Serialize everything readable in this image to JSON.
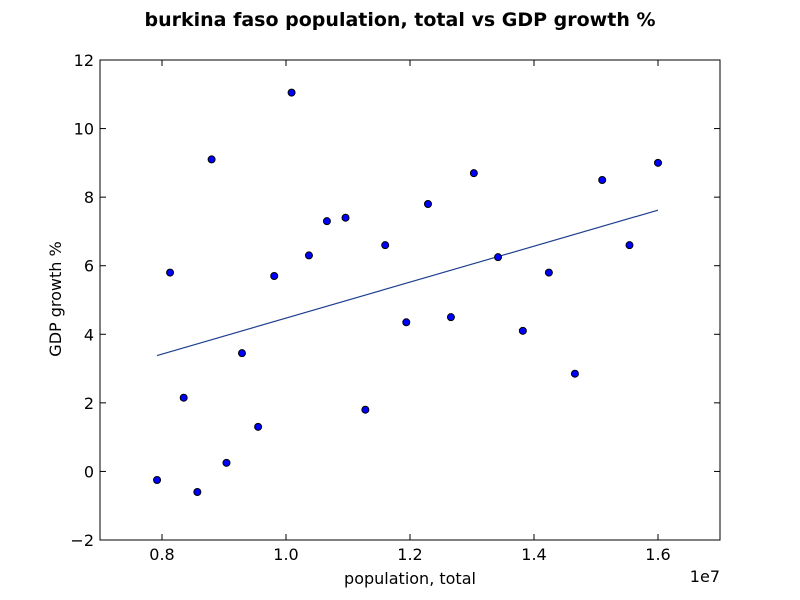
{
  "chart_data": {
    "type": "scatter",
    "title": "burkina faso population, total vs GDP growth %",
    "xlabel": "population, total",
    "ylabel": "GDP growth %",
    "x_offset_label": "1e7",
    "xlim": [
      7000000,
      17000000
    ],
    "ylim": [
      -2,
      12
    ],
    "x_ticks": [
      8000000,
      10000000,
      12000000,
      14000000,
      16000000
    ],
    "x_tick_labels": [
      "0.8",
      "1.0",
      "1.2",
      "1.4",
      "1.6"
    ],
    "y_ticks": [
      -2,
      0,
      2,
      4,
      6,
      8,
      10,
      12
    ],
    "y_tick_labels": [
      "−2",
      "0",
      "2",
      "4",
      "6",
      "8",
      "10",
      "12"
    ],
    "grid": false,
    "point_color": "#0000ff",
    "line_color": "#1f3f8f",
    "points": [
      {
        "x": 7920000,
        "y": -0.25
      },
      {
        "x": 8130000,
        "y": 5.8
      },
      {
        "x": 8350000,
        "y": 2.15
      },
      {
        "x": 8570000,
        "y": -0.6
      },
      {
        "x": 8800000,
        "y": 9.1
      },
      {
        "x": 9040000,
        "y": 0.25
      },
      {
        "x": 9290000,
        "y": 3.45
      },
      {
        "x": 9550000,
        "y": 1.3
      },
      {
        "x": 9810000,
        "y": 5.7
      },
      {
        "x": 10090000,
        "y": 11.05
      },
      {
        "x": 10370000,
        "y": 6.3
      },
      {
        "x": 10660000,
        "y": 7.3
      },
      {
        "x": 10960000,
        "y": 7.4
      },
      {
        "x": 11280000,
        "y": 1.8
      },
      {
        "x": 11600000,
        "y": 6.6
      },
      {
        "x": 11940000,
        "y": 4.35
      },
      {
        "x": 12290000,
        "y": 7.8
      },
      {
        "x": 12660000,
        "y": 4.5
      },
      {
        "x": 13030000,
        "y": 8.7
      },
      {
        "x": 13420000,
        "y": 6.25
      },
      {
        "x": 13820000,
        "y": 4.1
      },
      {
        "x": 14240000,
        "y": 5.8
      },
      {
        "x": 14660000,
        "y": 2.85
      },
      {
        "x": 15100000,
        "y": 8.5
      },
      {
        "x": 15540000,
        "y": 6.6
      },
      {
        "x": 16000000,
        "y": 9.0
      }
    ],
    "trendline": [
      {
        "x": 7920000,
        "y": 3.38
      },
      {
        "x": 16000000,
        "y": 7.62
      }
    ]
  }
}
